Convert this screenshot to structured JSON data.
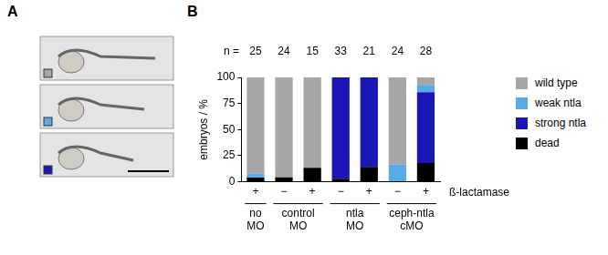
{
  "panels": [
    "A",
    "B"
  ],
  "chart_data": {
    "type": "bar",
    "stacked": true,
    "grid": false,
    "legend": "right",
    "y_label": "embryos / %",
    "ylim": [
      0,
      100
    ],
    "yticks": [
      0,
      25,
      50,
      75,
      100
    ],
    "categories": [
      "+",
      "−",
      "+",
      "−",
      "+",
      "−",
      "+"
    ],
    "category_groups": [
      "no MO",
      "control MO",
      "control MO",
      "ntla MO",
      "ntla MO",
      "ceph-ntla cMO",
      "ceph-ntla cMO"
    ],
    "row_label": "ß-lactamase",
    "n_label": "n =",
    "n": [
      25,
      24,
      15,
      33,
      21,
      24,
      28
    ],
    "series": [
      {
        "name": "wild type",
        "color": "#a6a6a6",
        "values": [
          92,
          95.8,
          86.7,
          0,
          0,
          83.3,
          7.1
        ]
      },
      {
        "name": "weak ntla",
        "color": "#5aaaea",
        "values": [
          4,
          0,
          0,
          0,
          0,
          16.7,
          7.1
        ]
      },
      {
        "name": "strong ntla",
        "color": "#1a17b4",
        "values": [
          0,
          0,
          0,
          97,
          85.7,
          0,
          67.9
        ]
      },
      {
        "name": "dead",
        "color": "#000000",
        "values": [
          4,
          4.2,
          13.3,
          3,
          14.3,
          0,
          17.9
        ]
      }
    ]
  }
}
